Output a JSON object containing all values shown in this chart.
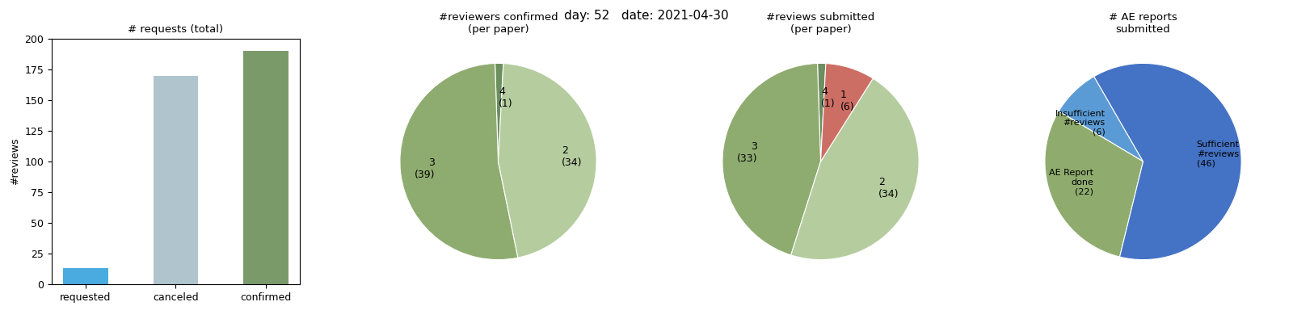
{
  "suptitle": "day: 52   date: 2021-04-30",
  "bar_title": "# requests (total)",
  "bar_categories": [
    "requested",
    "canceled",
    "confirmed"
  ],
  "bar_values": [
    13,
    170,
    190
  ],
  "bar_colors": [
    "#4aabe0",
    "#b0c4cd",
    "#7a9a6a"
  ],
  "bar_ylabel": "#reviews",
  "bar_ylim": [
    0,
    200
  ],
  "pie1_title": "#reviewers confirmed\n(per paper)",
  "pie1_slices": [
    1,
    39,
    34
  ],
  "pie1_labels": [
    "4\n(1)",
    "3\n(39)",
    "2\n(34)"
  ],
  "pie1_colors": [
    "#6b8f5e",
    "#8fac70",
    "#b5cc9e"
  ],
  "pie1_startangle": 87,
  "pie2_title": "#reviews submitted\n(per paper)",
  "pie2_slices": [
    1,
    33,
    34,
    6
  ],
  "pie2_labels": [
    "4\n(1)",
    "3\n(33)",
    "2\n(34)",
    "1\n(6)"
  ],
  "pie2_colors": [
    "#6b8f5e",
    "#8fac70",
    "#b5cc9e",
    "#cd6e65"
  ],
  "pie2_startangle": 87,
  "pie3_title": "# AE reports\nsubmitted",
  "pie3_slices": [
    6,
    22,
    46
  ],
  "pie3_labels": [
    "Insufficient\n#reviews\n(6)",
    "AE Report\ndone\n(22)",
    "Sufficient\n#reviews\n(46)"
  ],
  "pie3_colors": [
    "#5b9bd5",
    "#8fac6e",
    "#4472c4"
  ],
  "pie3_startangle": 120
}
